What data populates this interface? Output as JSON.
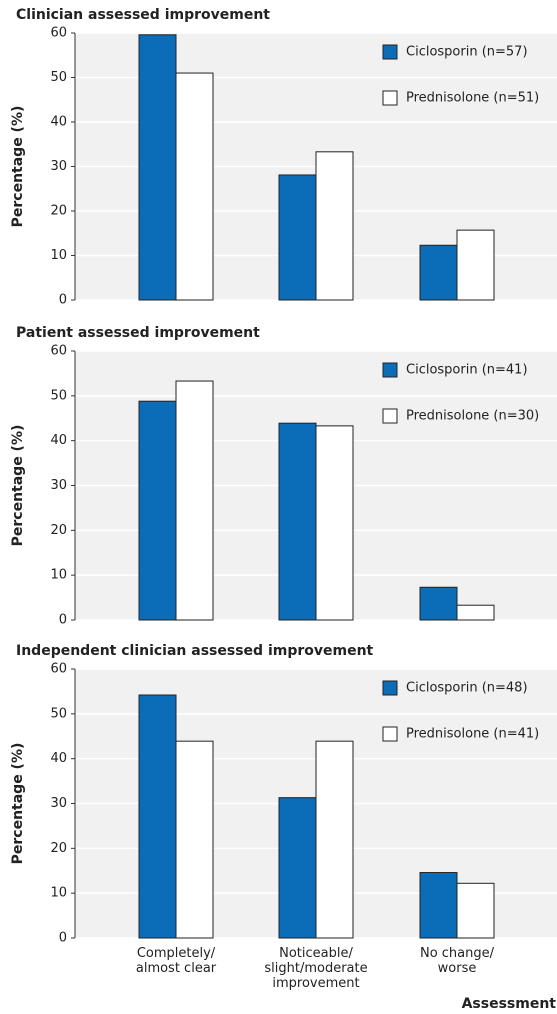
{
  "chart_data": [
    {
      "type": "bar",
      "title": "Clinician assessed improvement",
      "ylabel": "Percentage (%)",
      "categories": [
        null,
        null,
        null
      ],
      "series": [
        {
          "name": "Ciclosporin (n=57)",
          "color": "#0b6cb8",
          "values": [
            59.6,
            28.1,
            12.3
          ]
        },
        {
          "name": "Prednisolone (n=51)",
          "color": "#ffffff",
          "values": [
            51.0,
            33.3,
            15.7
          ]
        }
      ],
      "ylim": [
        0,
        60
      ],
      "yticks": [
        0,
        10,
        20,
        30,
        40,
        50,
        60
      ],
      "grid": true,
      "legend": "upper right"
    },
    {
      "type": "bar",
      "title": "Patient assessed improvement",
      "ylabel": "Percentage (%)",
      "categories": [
        null,
        null,
        null
      ],
      "series": [
        {
          "name": "Ciclosporin (n=41)",
          "color": "#0b6cb8",
          "values": [
            48.8,
            43.9,
            7.3
          ]
        },
        {
          "name": "Prednisolone (n=30)",
          "color": "#ffffff",
          "values": [
            53.3,
            43.3,
            3.3
          ]
        }
      ],
      "ylim": [
        0,
        60
      ],
      "yticks": [
        0,
        10,
        20,
        30,
        40,
        50,
        60
      ],
      "grid": true,
      "legend": "upper right"
    },
    {
      "type": "bar",
      "title": "Independent clinician assessed improvement",
      "ylabel": "Percentage (%)",
      "xlabel": "Assessment",
      "categories": [
        [
          "Completely/",
          "almost clear"
        ],
        [
          "Noticeable/",
          "slight/moderate",
          "improvement"
        ],
        [
          "No change/",
          "worse"
        ]
      ],
      "series": [
        {
          "name": "Ciclosporin (n=48)",
          "color": "#0b6cb8",
          "values": [
            54.2,
            31.3,
            14.6
          ]
        },
        {
          "name": "Prednisolone (n=41)",
          "color": "#ffffff",
          "values": [
            43.9,
            43.9,
            12.2
          ]
        }
      ],
      "ylim": [
        0,
        60
      ],
      "yticks": [
        0,
        10,
        20,
        30,
        40,
        50,
        60
      ],
      "grid": true,
      "legend": "upper right"
    }
  ]
}
